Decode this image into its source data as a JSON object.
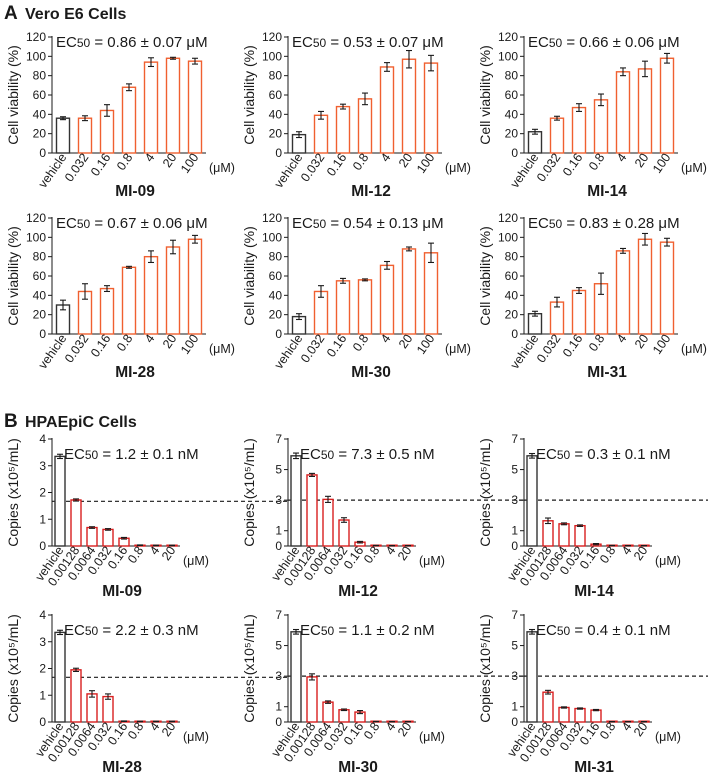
{
  "panel_a": {
    "letter": "A",
    "title": "Vero E6 Cells"
  },
  "panel_b": {
    "letter": "B",
    "title": "HPAEpiC Cells"
  },
  "colors": {
    "vehicle_a": "#333333",
    "treated_a": "#f06030",
    "vehicle_b": "#333333",
    "treated_b": "#d81e1e",
    "error": "#1a1a1a",
    "threshold": "#1a1a1a"
  },
  "chart_data": [
    {
      "type": "bar",
      "panel": "A",
      "compound": "MI-09",
      "ec50": {
        "prefix": "EC",
        "sub": "50",
        "rest": " = 0.86 ± 0.07 μM"
      },
      "categories": [
        "vehicle",
        "0.032",
        "0.16",
        "0.8",
        "4",
        "20",
        "100"
      ],
      "unit": "(μM)",
      "values": [
        36,
        36,
        44,
        68,
        94,
        98,
        95
      ],
      "errors": [
        1.5,
        2.5,
        6,
        3.5,
        4.5,
        1,
        3
      ],
      "ylabel": "Cell viability (%)",
      "ylim": [
        0,
        120
      ],
      "yticks": [
        "0",
        "20",
        "40",
        "60",
        "80",
        "100",
        "120"
      ]
    },
    {
      "type": "bar",
      "panel": "A",
      "compound": "MI-12",
      "ec50": {
        "prefix": "EC",
        "sub": "50",
        "rest": " = 0.53 ± 0.07 μM"
      },
      "categories": [
        "vehicle",
        "0.032",
        "0.16",
        "0.8",
        "4",
        "20",
        "100"
      ],
      "unit": "(μM)",
      "values": [
        19,
        39,
        48,
        56,
        89,
        97,
        93
      ],
      "errors": [
        3,
        4,
        2.5,
        6,
        4.5,
        9,
        8
      ],
      "ylabel": "Cell viability (%)",
      "ylim": [
        0,
        120
      ],
      "yticks": [
        "0",
        "20",
        "40",
        "60",
        "80",
        "100",
        "120"
      ]
    },
    {
      "type": "bar",
      "panel": "A",
      "compound": "MI-14",
      "ec50": {
        "prefix": "EC",
        "sub": "50",
        "rest": " = 0.66 ± 0.06 μM"
      },
      "categories": [
        "vehicle",
        "0.032",
        "0.16",
        "0.8",
        "4",
        "20",
        "100"
      ],
      "unit": "(μM)",
      "values": [
        22,
        36,
        47,
        55,
        84,
        87,
        98
      ],
      "errors": [
        2.5,
        2,
        4,
        6,
        4,
        8,
        5
      ],
      "ylabel": "Cell viability (%)",
      "ylim": [
        0,
        120
      ],
      "yticks": [
        "0",
        "20",
        "40",
        "60",
        "80",
        "100",
        "120"
      ]
    },
    {
      "type": "bar",
      "panel": "A",
      "compound": "MI-28",
      "ec50": {
        "prefix": "EC",
        "sub": "50",
        "rest": " = 0.67 ± 0.06 μM"
      },
      "categories": [
        "vehicle",
        "0.032",
        "0.16",
        "0.8",
        "4",
        "20",
        "100"
      ],
      "unit": "(μM)",
      "values": [
        30,
        44,
        47,
        69,
        80,
        90,
        98
      ],
      "errors": [
        5,
        8,
        3,
        1,
        6,
        7,
        4
      ],
      "ylabel": "Cell viability (%)",
      "ylim": [
        0,
        120
      ],
      "yticks": [
        "0",
        "20",
        "40",
        "60",
        "80",
        "100",
        "120"
      ]
    },
    {
      "type": "bar",
      "panel": "A",
      "compound": "MI-30",
      "ec50": {
        "prefix": "EC",
        "sub": "50",
        "rest": " = 0.54 ± 0.13 μM"
      },
      "categories": [
        "vehicle",
        "0.032",
        "0.16",
        "0.8",
        "4",
        "20",
        "100"
      ],
      "unit": "(μM)",
      "values": [
        18,
        44,
        55,
        56,
        71,
        88,
        84
      ],
      "errors": [
        3,
        6,
        2.5,
        1,
        4,
        2,
        10
      ],
      "ylabel": "Cell viability (%)",
      "ylim": [
        0,
        120
      ],
      "yticks": [
        "0",
        "20",
        "40",
        "60",
        "80",
        "100",
        "120"
      ]
    },
    {
      "type": "bar",
      "panel": "A",
      "compound": "MI-31",
      "ec50": {
        "prefix": "EC",
        "sub": "50",
        "rest": " = 0.83 ± 0.28 μM"
      },
      "categories": [
        "vehicle",
        "0.032",
        "0.16",
        "0.8",
        "4",
        "20",
        "100"
      ],
      "unit": "(μM)",
      "values": [
        21,
        33,
        45,
        52,
        86,
        98,
        95
      ],
      "errors": [
        2.5,
        5,
        3,
        11,
        2.5,
        6,
        4
      ],
      "ylabel": "Cell viability (%)",
      "ylim": [
        0,
        120
      ],
      "yticks": [
        "0",
        "20",
        "40",
        "60",
        "80",
        "100",
        "120"
      ]
    },
    {
      "type": "bar",
      "panel": "B",
      "compound": "MI-09",
      "ec50": {
        "prefix": "EC",
        "sub": "50",
        "rest": " = 1.2 ± 0.1 nM"
      },
      "categories": [
        "vehicle",
        "0.00128",
        "0.0064",
        "0.032",
        "0.16",
        "0.8",
        "4",
        "20"
      ],
      "unit": "(μM)",
      "values": [
        3.35,
        1.72,
        0.69,
        0.62,
        0.29,
        0.03,
        0.02,
        0.02
      ],
      "errors": [
        0.08,
        0.04,
        0.03,
        0.03,
        0.03,
        0.01,
        0.01,
        0.01
      ],
      "ylabel": "Copies (x10⁵/mL)",
      "ylim": [
        0,
        4
      ],
      "yticks": [
        "0",
        "1",
        "2",
        "3",
        "4"
      ],
      "threshold": 1.67
    },
    {
      "type": "bar",
      "panel": "B",
      "compound": "MI-12",
      "ec50": {
        "prefix": "EC",
        "sub": "50",
        "rest": " = 7.3 ± 0.5 nM"
      },
      "categories": [
        "vehicle",
        "0.00128",
        "0.0064",
        "0.032",
        "0.16",
        "0.8",
        "4",
        "20"
      ],
      "unit": "(μM)",
      "values": [
        5.9,
        4.65,
        3.05,
        1.7,
        0.25,
        0.03,
        0.02,
        0.02
      ],
      "errors": [
        0.18,
        0.1,
        0.2,
        0.15,
        0.05,
        0.01,
        0.01,
        0.01
      ],
      "ylabel": "Copies (x10⁵/mL)",
      "ylim": [
        0,
        7
      ],
      "yticks": [
        "0",
        "1",
        "3",
        "5",
        "7"
      ],
      "threshold": 3.0
    },
    {
      "type": "bar",
      "panel": "B",
      "compound": "MI-14",
      "ec50": {
        "prefix": "EC",
        "sub": "50",
        "rest": " = 0.3 ± 0.1 nM"
      },
      "categories": [
        "vehicle",
        "0.00128",
        "0.0064",
        "0.032",
        "0.16",
        "0.8",
        "4",
        "20"
      ],
      "unit": "(μM)",
      "values": [
        5.9,
        1.65,
        1.45,
        1.33,
        0.12,
        0.03,
        0.02,
        0.02
      ],
      "errors": [
        0.15,
        0.18,
        0.06,
        0.05,
        0.04,
        0.01,
        0.01,
        0.01
      ],
      "ylabel": "Copies (x10⁵/mL)",
      "ylim": [
        0,
        7
      ],
      "yticks": [
        "0",
        "1",
        "3",
        "5",
        "7"
      ],
      "threshold": 3.0
    },
    {
      "type": "bar",
      "panel": "B",
      "compound": "MI-28",
      "ec50": {
        "prefix": "EC",
        "sub": "50",
        "rest": " = 2.2 ± 0.3 nM"
      },
      "categories": [
        "vehicle",
        "0.00128",
        "0.0064",
        "0.032",
        "0.16",
        "0.8",
        "4",
        "20"
      ],
      "unit": "(μM)",
      "values": [
        3.35,
        1.95,
        1.05,
        0.95,
        0.03,
        0.02,
        0.02,
        0.02
      ],
      "errors": [
        0.08,
        0.06,
        0.12,
        0.1,
        0.01,
        0.01,
        0.01,
        0.01
      ],
      "ylabel": "Copies (x10⁵/mL)",
      "ylim": [
        0,
        4
      ],
      "yticks": [
        "0",
        "1",
        "2",
        "3",
        "4"
      ],
      "threshold": 1.67
    },
    {
      "type": "bar",
      "panel": "B",
      "compound": "MI-30",
      "ec50": {
        "prefix": "EC",
        "sub": "50",
        "rest": " = 1.1 ± 0.2 nM"
      },
      "categories": [
        "vehicle",
        "0.00128",
        "0.0064",
        "0.032",
        "0.16",
        "0.8",
        "4",
        "20"
      ],
      "unit": "(μM)",
      "values": [
        5.9,
        2.95,
        1.3,
        0.8,
        0.65,
        0.03,
        0.02,
        0.02
      ],
      "errors": [
        0.15,
        0.2,
        0.08,
        0.05,
        0.1,
        0.01,
        0.01,
        0.01
      ],
      "ylabel": "Copies (x10⁵/mL)",
      "ylim": [
        0,
        7
      ],
      "yticks": [
        "0",
        "1",
        "3",
        "5",
        "7"
      ],
      "threshold": 3.0
    },
    {
      "type": "bar",
      "panel": "B",
      "compound": "MI-31",
      "ec50": {
        "prefix": "EC",
        "sub": "50",
        "rest": " = 0.4 ± 0.1 nM"
      },
      "categories": [
        "vehicle",
        "0.00128",
        "0.0064",
        "0.032",
        "0.16",
        "0.8",
        "4",
        "20"
      ],
      "unit": "(μM)",
      "values": [
        5.9,
        1.95,
        0.95,
        0.88,
        0.78,
        0.02,
        0.02,
        0.02
      ],
      "errors": [
        0.15,
        0.12,
        0.04,
        0.04,
        0.04,
        0.01,
        0.01,
        0.01
      ],
      "ylabel": "Copies (x10⁵/mL)",
      "ylim": [
        0,
        7
      ],
      "yticks": [
        "0",
        "1",
        "3",
        "5",
        "7"
      ],
      "threshold": 3.0
    }
  ]
}
